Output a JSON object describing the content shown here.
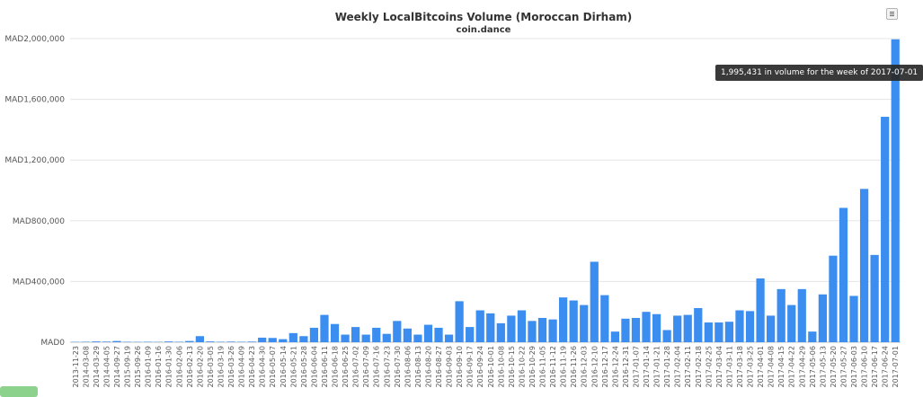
{
  "chart_data": {
    "type": "bar",
    "title": "Weekly LocalBitcoins Volume (Moroccan Dirham)",
    "subtitle": "coin.dance",
    "xlabel": "",
    "ylabel": "",
    "ylim": [
      0,
      2000000
    ],
    "yticks": [
      "MAD0",
      "MAD400,000",
      "MAD800,000",
      "MAD1,200,000",
      "MAD1,600,000",
      "MAD2,000,000"
    ],
    "grid": true,
    "bar_color": "#3b8ef0",
    "categories": [
      "2013-11-23",
      "2014-03-08",
      "2014-03-29",
      "2014-04-05",
      "2014-09-27",
      "2015-09-19",
      "2015-09-26",
      "2016-01-09",
      "2016-01-16",
      "2016-01-30",
      "2016-02-06",
      "2016-02-13",
      "2016-02-20",
      "2016-03-05",
      "2016-03-19",
      "2016-03-26",
      "2016-04-09",
      "2016-04-23",
      "2016-04-30",
      "2016-05-07",
      "2016-05-14",
      "2016-05-21",
      "2016-05-28",
      "2016-06-04",
      "2016-06-11",
      "2016-06-18",
      "2016-06-25",
      "2016-07-02",
      "2016-07-09",
      "2016-07-16",
      "2016-07-23",
      "2016-07-30",
      "2016-08-06",
      "2016-08-13",
      "2016-08-20",
      "2016-08-27",
      "2016-09-03",
      "2016-09-10",
      "2016-09-17",
      "2016-09-24",
      "2016-10-01",
      "2016-10-08",
      "2016-10-15",
      "2016-10-22",
      "2016-10-29",
      "2016-11-05",
      "2016-11-12",
      "2016-11-19",
      "2016-11-26",
      "2016-12-03",
      "2016-12-10",
      "2016-12-17",
      "2016-12-24",
      "2016-12-31",
      "2017-01-07",
      "2017-01-14",
      "2017-01-21",
      "2017-01-28",
      "2017-02-04",
      "2017-02-11",
      "2017-02-18",
      "2017-02-25",
      "2017-03-04",
      "2017-03-11",
      "2017-03-18",
      "2017-03-25",
      "2017-04-01",
      "2017-04-08",
      "2017-04-15",
      "2017-04-22",
      "2017-04-29",
      "2017-05-06",
      "2017-05-13",
      "2017-05-20",
      "2017-05-27",
      "2017-06-03",
      "2017-06-10",
      "2017-06-17",
      "2017-06-24",
      "2017-07-01"
    ],
    "values": [
      2000,
      3000,
      5000,
      4000,
      8000,
      3000,
      2000,
      3000,
      2000,
      5000,
      3000,
      8000,
      40000,
      5000,
      3000,
      4000,
      3000,
      4000,
      30000,
      28000,
      20000,
      60000,
      40000,
      95000,
      180000,
      120000,
      50000,
      100000,
      50000,
      95000,
      55000,
      140000,
      90000,
      50000,
      115000,
      95000,
      50000,
      270000,
      100000,
      210000,
      190000,
      125000,
      175000,
      210000,
      140000,
      160000,
      150000,
      295000,
      275000,
      245000,
      530000,
      310000,
      70000,
      155000,
      160000,
      200000,
      185000,
      80000,
      175000,
      180000,
      225000,
      130000,
      130000,
      135000,
      210000,
      205000,
      420000,
      175000,
      350000,
      245000,
      350000,
      70000,
      315000,
      570000,
      885000,
      305000,
      1010000,
      575000,
      1485000,
      1995431
    ],
    "tooltip": "1,995,431 in volume for the week of 2017-07-01"
  }
}
